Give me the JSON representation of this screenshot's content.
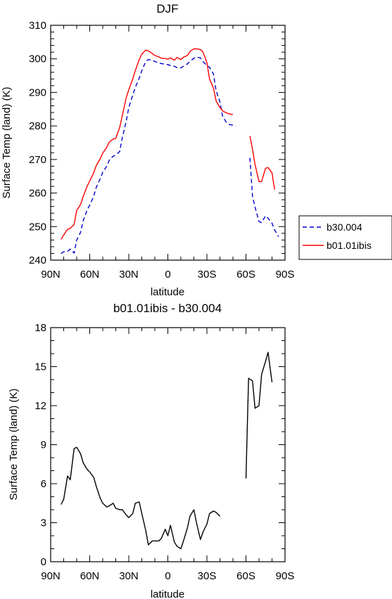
{
  "chart_data": [
    {
      "type": "line",
      "title": "DJF",
      "xlabel": "latitude",
      "ylabel": "Surface Temp (land) (K)",
      "xlim": [
        90,
        -90
      ],
      "ylim": [
        240,
        310
      ],
      "xticks": [
        {
          "v": 90,
          "label": "90N"
        },
        {
          "v": 60,
          "label": "60N"
        },
        {
          "v": 30,
          "label": "30N"
        },
        {
          "v": 0,
          "label": "0"
        },
        {
          "v": -30,
          "label": "30S"
        },
        {
          "v": -60,
          "label": "60S"
        },
        {
          "v": -90,
          "label": "90S"
        }
      ],
      "yticks": [
        240,
        250,
        260,
        270,
        280,
        290,
        300,
        310
      ],
      "legend_placement": "right",
      "series": [
        {
          "name": "b30.004",
          "color": "#0000cc",
          "dash": "dashed",
          "segments": [
            [
              [
                82,
                242.0
              ],
              [
                80,
                242.5
              ],
              [
                77,
                242.6
              ],
              [
                75,
                243.3
              ],
              [
                72,
                242.1
              ],
              [
                70,
                246.0
              ],
              [
                67,
                248.3
              ],
              [
                65,
                251.8
              ],
              [
                62,
                254.9
              ],
              [
                60,
                256.4
              ],
              [
                57,
                259.0
              ],
              [
                55,
                261.7
              ],
              [
                52,
                264.2
              ],
              [
                50,
                266.2
              ],
              [
                47,
                268.0
              ],
              [
                45,
                269.8
              ],
              [
                42,
                271.0
              ],
              [
                40,
                271.3
              ],
              [
                37,
                272.4
              ],
              [
                35,
                276.5
              ],
              [
                32,
                281.4
              ],
              [
                30,
                285.5
              ],
              [
                27,
                289.2
              ],
              [
                25,
                291.5
              ],
              [
                22,
                294.2
              ],
              [
                20,
                296.5
              ],
              [
                17,
                299.2
              ],
              [
                15,
                299.8
              ],
              [
                12,
                299.6
              ],
              [
                10,
                299.2
              ],
              [
                7,
                298.8
              ],
              [
                5,
                298.6
              ],
              [
                2,
                298.4
              ],
              [
                0,
                298.3
              ],
              [
                -2,
                298.0
              ],
              [
                -5,
                297.8
              ],
              [
                -7,
                297.4
              ],
              [
                -10,
                297.3
              ],
              [
                -12,
                297.8
              ],
              [
                -15,
                298.5
              ],
              [
                -17,
                299.2
              ],
              [
                -20,
                300.2
              ],
              [
                -22,
                300.5
              ],
              [
                -25,
                300.3
              ],
              [
                -27,
                299.2
              ],
              [
                -30,
                298.0
              ],
              [
                -32,
                297.5
              ],
              [
                -35,
                295.5
              ],
              [
                -37,
                290.5
              ],
              [
                -40,
                287.2
              ],
              [
                -42,
                283.0
              ],
              [
                -45,
                281.0
              ],
              [
                -47,
                280.5
              ],
              [
                -50,
                280.2
              ],
              [
                -52,
                279.8
              ]
            ],
            [
              [
                -63,
                270.5
              ],
              [
                -65,
                259.0
              ],
              [
                -67,
                255.8
              ],
              [
                -70,
                251.5
              ],
              [
                -72,
                251.2
              ],
              [
                -75,
                253.2
              ],
              [
                -77,
                252.5
              ],
              [
                -80,
                251.0
              ],
              [
                -82,
                249.0
              ],
              [
                -85,
                247.0
              ]
            ]
          ]
        },
        {
          "name": "b01.01ibis",
          "color": "#ff0000",
          "dash": "solid",
          "segments": [
            [
              [
                82,
                246.2
              ],
              [
                80,
                247.5
              ],
              [
                77,
                249.2
              ],
              [
                75,
                249.5
              ],
              [
                72,
                250.6
              ],
              [
                70,
                254.8
              ],
              [
                67,
                256.6
              ],
              [
                65,
                259.0
              ],
              [
                62,
                262.0
              ],
              [
                60,
                263.6
              ],
              [
                57,
                266.0
              ],
              [
                55,
                268.2
              ],
              [
                52,
                270.2
              ],
              [
                50,
                271.9
              ],
              [
                47,
                273.6
              ],
              [
                45,
                275.2
              ],
              [
                42,
                276.1
              ],
              [
                40,
                276.3
              ],
              [
                37,
                279.6
              ],
              [
                35,
                283.1
              ],
              [
                32,
                288.4
              ],
              [
                30,
                290.8
              ],
              [
                27,
                294.0
              ],
              [
                25,
                296.5
              ],
              [
                22,
                299.8
              ],
              [
                20,
                301.4
              ],
              [
                17,
                302.6
              ],
              [
                15,
                302.4
              ],
              [
                12,
                301.6
              ],
              [
                10,
                301.0
              ],
              [
                7,
                300.6
              ],
              [
                5,
                300.2
              ],
              [
                2,
                300.1
              ],
              [
                0,
                299.9
              ],
              [
                -2,
                300.3
              ],
              [
                -5,
                299.6
              ],
              [
                -7,
                300.4
              ],
              [
                -10,
                299.8
              ],
              [
                -12,
                300.5
              ],
              [
                -15,
                301.0
              ],
              [
                -17,
                302.2
              ],
              [
                -20,
                303.0
              ],
              [
                -22,
                303.0
              ],
              [
                -25,
                302.8
              ],
              [
                -27,
                302.0
              ],
              [
                -30,
                298.9
              ],
              [
                -32,
                294.0
              ],
              [
                -35,
                291.3
              ],
              [
                -37,
                287.5
              ],
              [
                -40,
                285.5
              ],
              [
                -42,
                284.5
              ],
              [
                -45,
                283.9
              ],
              [
                -47,
                283.6
              ],
              [
                -50,
                283.4
              ]
            ],
            [
              [
                -63,
                277.0
              ],
              [
                -65,
                273.0
              ],
              [
                -67,
                268.5
              ],
              [
                -70,
                263.4
              ],
              [
                -72,
                263.4
              ],
              [
                -75,
                267.4
              ],
              [
                -77,
                267.6
              ],
              [
                -80,
                266.0
              ],
              [
                -82,
                261.0
              ]
            ]
          ]
        }
      ]
    },
    {
      "type": "line",
      "title": "b01.01ibis - b30.004",
      "xlabel": "latitude",
      "ylabel": "Surface Temp (land) (K)",
      "xlim": [
        90,
        -90
      ],
      "ylim": [
        0,
        18
      ],
      "xticks": [
        {
          "v": 90,
          "label": "90N"
        },
        {
          "v": 60,
          "label": "60N"
        },
        {
          "v": 30,
          "label": "30N"
        },
        {
          "v": 0,
          "label": "0"
        },
        {
          "v": -30,
          "label": "30S"
        },
        {
          "v": -60,
          "label": "60S"
        },
        {
          "v": -90,
          "label": "90S"
        }
      ],
      "yticks": [
        0,
        3,
        6,
        9,
        12,
        15,
        18
      ],
      "series": [
        {
          "name": "",
          "color": "#000000",
          "dash": "solid",
          "segments": [
            [
              [
                82,
                4.4
              ],
              [
                80,
                4.8
              ],
              [
                77,
                6.6
              ],
              [
                75,
                6.3
              ],
              [
                72,
                8.7
              ],
              [
                70,
                8.8
              ],
              [
                67,
                8.3
              ],
              [
                65,
                7.6
              ],
              [
                62,
                7.1
              ],
              [
                60,
                6.9
              ],
              [
                57,
                6.5
              ],
              [
                55,
                5.8
              ],
              [
                52,
                4.9
              ],
              [
                50,
                4.5
              ],
              [
                47,
                4.2
              ],
              [
                45,
                4.3
              ],
              [
                42,
                4.5
              ],
              [
                40,
                4.1
              ],
              [
                37,
                4.0
              ],
              [
                35,
                4.0
              ],
              [
                32,
                3.6
              ],
              [
                30,
                3.4
              ],
              [
                27,
                3.7
              ],
              [
                25,
                4.5
              ],
              [
                22,
                4.6
              ],
              [
                20,
                3.7
              ],
              [
                17,
                2.4
              ],
              [
                15,
                1.3
              ],
              [
                12,
                1.6
              ],
              [
                10,
                1.6
              ],
              [
                7,
                1.6
              ],
              [
                5,
                1.8
              ],
              [
                2,
                2.5
              ],
              [
                0,
                2.0
              ],
              [
                -2,
                2.8
              ],
              [
                -5,
                1.5
              ],
              [
                -7,
                1.2
              ],
              [
                -10,
                1.0
              ],
              [
                -12,
                1.6
              ],
              [
                -15,
                2.6
              ],
              [
                -17,
                3.5
              ],
              [
                -20,
                4.0
              ],
              [
                -22,
                3.0
              ],
              [
                -25,
                1.7
              ],
              [
                -27,
                2.3
              ],
              [
                -30,
                2.9
              ],
              [
                -32,
                3.7
              ],
              [
                -35,
                3.9
              ],
              [
                -37,
                3.8
              ],
              [
                -40,
                3.5
              ]
            ],
            [
              [
                -60,
                6.4
              ],
              [
                -62,
                14.1
              ],
              [
                -65,
                13.9
              ],
              [
                -67,
                11.8
              ],
              [
                -70,
                12.0
              ],
              [
                -72,
                14.4
              ],
              [
                -75,
                15.4
              ],
              [
                -77,
                16.1
              ],
              [
                -80,
                13.8
              ]
            ]
          ]
        }
      ]
    }
  ]
}
